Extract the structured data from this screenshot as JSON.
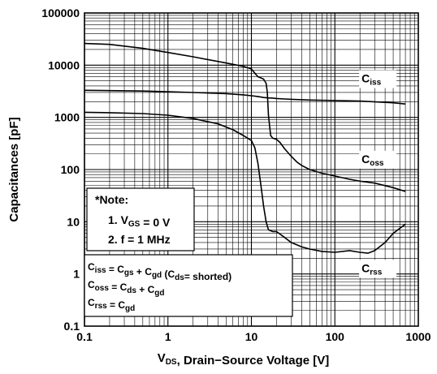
{
  "chart_data": {
    "type": "line",
    "xlabel": {
      "main": "V",
      "sub": "DS",
      "rest": ", Drain−Source Voltage [V]"
    },
    "ylabel": "Capacitances [pF]",
    "xscale": "log",
    "yscale": "log",
    "xlim": [
      0.1,
      1000
    ],
    "ylim": [
      0.1,
      100000
    ],
    "grid": true,
    "x_ticks": [
      {
        "value": 0.1,
        "label": "0.1"
      },
      {
        "value": 1,
        "label": "1"
      },
      {
        "value": 10,
        "label": "10"
      },
      {
        "value": 100,
        "label": "100"
      },
      {
        "value": 1000,
        "label": "1000"
      }
    ],
    "y_ticks": [
      {
        "value": 0.1,
        "label": "0.1"
      },
      {
        "value": 1,
        "label": "1"
      },
      {
        "value": 10,
        "label": "10"
      },
      {
        "value": 100,
        "label": "100"
      },
      {
        "value": 1000,
        "label": "1000"
      },
      {
        "value": 10000,
        "label": "10000"
      },
      {
        "value": 100000,
        "label": "100000"
      }
    ],
    "series": [
      {
        "name": "C",
        "name_sub": "iss",
        "label_at": [
          2.3,
          0.12
        ],
        "x": [
          0.1,
          0.2,
          0.5,
          1,
          2,
          5,
          8,
          10,
          11,
          12,
          13,
          14,
          15,
          15.5,
          16,
          17,
          18,
          20,
          25,
          30,
          50,
          100,
          200,
          500,
          700
        ],
        "y": [
          3300,
          3250,
          3200,
          3100,
          3000,
          2850,
          2700,
          2600,
          2550,
          2500,
          2450,
          2400,
          2380,
          2370,
          2360,
          2350,
          2340,
          2300,
          2250,
          2220,
          2150,
          2100,
          2050,
          1900,
          1800
        ]
      },
      {
        "name": "C",
        "name_sub": "oss",
        "label_at": [
          1.25,
          0.08
        ],
        "x": [
          0.1,
          0.2,
          0.5,
          1,
          2,
          5,
          8,
          10,
          11,
          12,
          13,
          14,
          15,
          15.5,
          16,
          17,
          18,
          20,
          22,
          25,
          30,
          35,
          40,
          50,
          70,
          100,
          150,
          200,
          300,
          500,
          700
        ],
        "y": [
          26000,
          25000,
          21000,
          17500,
          14500,
          11000,
          9500,
          8500,
          7000,
          6000,
          5700,
          5400,
          4500,
          3000,
          1100,
          450,
          400,
          380,
          330,
          250,
          180,
          140,
          120,
          100,
          85,
          75,
          65,
          60,
          55,
          45,
          38
        ]
      },
      {
        "name": "C",
        "name_sub": "rss",
        "label_at": [
          1.38,
          0.12
        ],
        "x": [
          0.1,
          0.2,
          0.5,
          1,
          2,
          4,
          6,
          8,
          9,
          10,
          11,
          12,
          13,
          14,
          15,
          16,
          18,
          20,
          25,
          30,
          40,
          50,
          70,
          100,
          150,
          200,
          250,
          300,
          400,
          500,
          700
        ],
        "y": [
          1250,
          1230,
          1180,
          1100,
          950,
          750,
          580,
          450,
          400,
          360,
          260,
          130,
          50,
          20,
          10,
          7,
          6.5,
          6.5,
          5,
          4,
          3.3,
          3,
          2.7,
          2.6,
          2.8,
          2.6,
          2.5,
          2.8,
          4,
          6,
          9
        ]
      }
    ],
    "annotations": {
      "note_title": "*Note:",
      "note_items": [
        {
          "prefix": "1. V",
          "sub": "GS",
          "rest": " = 0 V"
        },
        {
          "prefix": "2. f = 1 MHz",
          "sub": "",
          "rest": ""
        }
      ],
      "formulas": [
        [
          {
            "t": "C",
            "s": "iss"
          },
          {
            "t": " = C",
            "s": "gs"
          },
          {
            "t": " + C",
            "s": "gd"
          },
          {
            "t": " (C",
            "s": "ds"
          },
          {
            "t": "= shorted)",
            "s": ""
          }
        ],
        [
          {
            "t": "C",
            "s": "oss"
          },
          {
            "t": " = C",
            "s": "ds"
          },
          {
            "t": " + C",
            "s": "gd"
          }
        ],
        [
          {
            "t": "C",
            "s": "rss"
          },
          {
            "t": " = C",
            "s": "gd"
          }
        ]
      ]
    }
  }
}
